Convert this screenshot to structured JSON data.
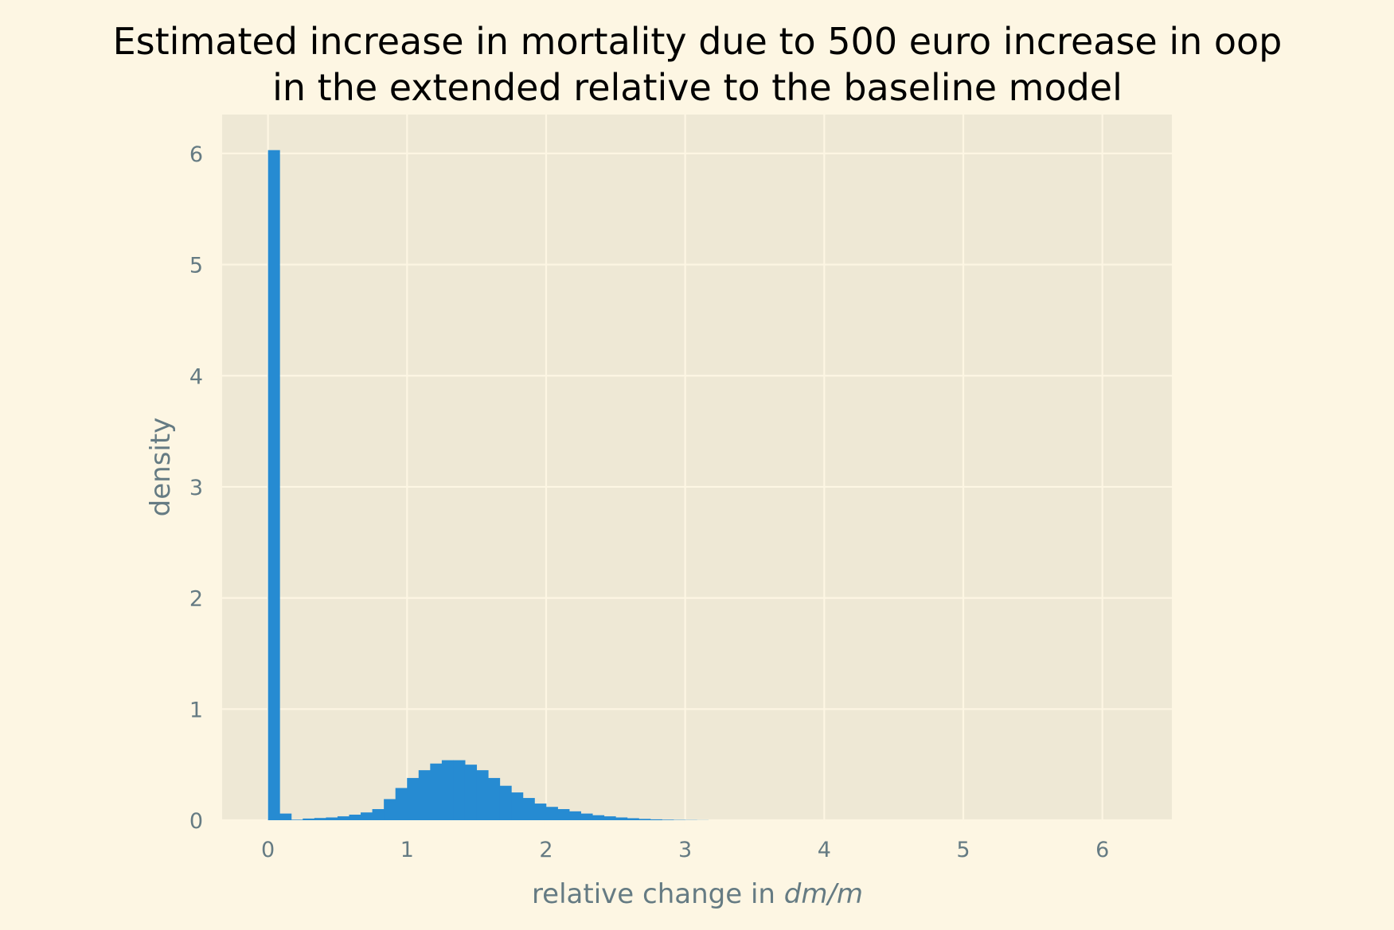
{
  "colors": {
    "figure_background": "#fdf6e3",
    "axes_background": "#eee8d5",
    "grid": "#fdf6e3",
    "bar": "#268bd2",
    "title": "#000000",
    "axis_text": "#657b83"
  },
  "chart_data": {
    "type": "bar",
    "title_lines": [
      "Estimated increase in mortality due to 500 euro increase in oop",
      "in the extended relative to the baseline model"
    ],
    "xlabel_prefix": "relative change in ",
    "xlabel_math": "dm/m",
    "ylabel": "density",
    "xlim": [
      -0.33,
      6.5
    ],
    "ylim": [
      0,
      6.35
    ],
    "xticks": [
      0,
      1,
      2,
      3,
      4,
      5,
      6
    ],
    "yticks": [
      0,
      1,
      2,
      3,
      4,
      5,
      6
    ],
    "grid": true,
    "legend": false,
    "bin_width": 0.0833,
    "bin_start": 0.0,
    "values": [
      6.03,
      0.06,
      0.005,
      0.015,
      0.02,
      0.025,
      0.035,
      0.05,
      0.07,
      0.1,
      0.19,
      0.29,
      0.38,
      0.45,
      0.51,
      0.54,
      0.54,
      0.5,
      0.45,
      0.38,
      0.31,
      0.25,
      0.2,
      0.15,
      0.12,
      0.1,
      0.08,
      0.06,
      0.045,
      0.035,
      0.025,
      0.018,
      0.012,
      0.008,
      0.005,
      0.003,
      0.002,
      0.001
    ]
  }
}
